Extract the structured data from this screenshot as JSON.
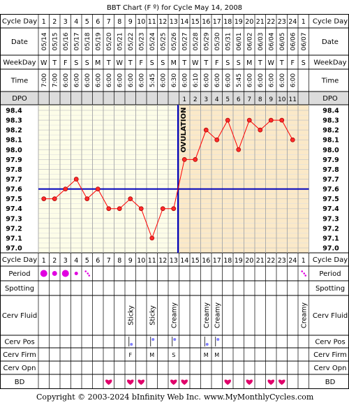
{
  "title": "BBT Chart (F º) for Cycle May 14, 2008",
  "footer": {
    "copyright": "Copyright © 2003-2024 bInfinity Web Inc.",
    "site": "www.MyMonthlyCycles.com"
  },
  "row_labels": {
    "cycle_day": "Cycle Day",
    "date": "Date",
    "weekday": "WeekDay",
    "time": "Time",
    "dpo": "DPO",
    "period": "Period",
    "spotting": "Spotting",
    "cerv_fluid": "Cerv Fluid",
    "cerv_pos": "Cerv Pos",
    "cerv_firm": "Cerv Firm",
    "cerv_opn": "Cerv Opn",
    "bd": "BD"
  },
  "ovulation_label": "OVULATION",
  "colors": {
    "pre_ovulation_bg": "#fdfde8",
    "post_ovulation_bg": "#fbe9c8",
    "grid": "#c8c8c8",
    "temp_line": "#ff0000",
    "point_fill": "#ff2a2a",
    "coverline": "#0000bb",
    "ovulation_line": "#0000bb",
    "period_dot": "#e000e0",
    "cerv_pos": "#8080ff",
    "cerv_firm": "#d000d0",
    "heart": "#e0006a",
    "dpo_bg": "#dcdcdc"
  },
  "chart_data": {
    "type": "line",
    "title": "BBT Chart (F º) for Cycle May 14, 2008",
    "cycle_days": [
      "1",
      "2",
      "3",
      "4",
      "5",
      "6",
      "7",
      "8",
      "9",
      "10",
      "11",
      "12",
      "13",
      "14",
      "15",
      "16",
      "17",
      "18",
      "19",
      "20",
      "21",
      "22",
      "23",
      "24",
      "1"
    ],
    "dates": [
      "05/14",
      "05/15",
      "05/16",
      "05/17",
      "05/18",
      "05/19",
      "05/20",
      "05/21",
      "05/22",
      "05/23",
      "05/24",
      "05/25",
      "05/26",
      "05/27",
      "05/28",
      "05/29",
      "05/30",
      "05/31",
      "06/01",
      "06/02",
      "06/03",
      "06/04",
      "06/05",
      "06/06",
      "06/07"
    ],
    "weekdays": [
      "W",
      "T",
      "F",
      "S",
      "S",
      "M",
      "T",
      "W",
      "T",
      "F",
      "S",
      "S",
      "M",
      "T",
      "W",
      "T",
      "F",
      "S",
      "S",
      "M",
      "T",
      "W",
      "T",
      "F",
      "S"
    ],
    "times": [
      "7:00",
      "7:00",
      "6:00",
      "6:00",
      "6:00",
      "6:00",
      "6:00",
      "6:00",
      "6:00",
      "6:00",
      "5:45",
      "6:00",
      "6:30",
      "6:00",
      "6:10",
      "6:00",
      "6:00",
      "6:00",
      "5:45",
      "6:00",
      "6:00",
      "6:00",
      "6:00",
      "6:00",
      ""
    ],
    "dpo": [
      "",
      "",
      "",
      "",
      "",
      "",
      "",
      "",
      "",
      "",
      "",
      "",
      "",
      "1",
      "2",
      "3",
      "4",
      "5",
      "6",
      "7",
      "8",
      "9",
      "10",
      "11",
      ""
    ],
    "temperatures": [
      97.5,
      97.5,
      97.6,
      97.7,
      97.5,
      97.6,
      97.4,
      97.4,
      97.5,
      97.4,
      97.1,
      97.4,
      97.4,
      97.9,
      97.9,
      98.2,
      98.1,
      98.3,
      98.0,
      98.3,
      98.2,
      98.3,
      98.3,
      98.1,
      null
    ],
    "y_ticks": [
      "98.4",
      "98.3",
      "98.2",
      "98.1",
      "98.0",
      "97.9",
      "97.8",
      "97.7",
      "97.6",
      "97.5",
      "97.4",
      "97.3",
      "97.2",
      "97.1",
      "97.0"
    ],
    "ylim": [
      97.0,
      98.4
    ],
    "coverline": 97.6,
    "ovulation_after_day_index": 12,
    "period": [
      3,
      2,
      3,
      1,
      0.5,
      0,
      0,
      0,
      0,
      0,
      0,
      0,
      0,
      0,
      0,
      0,
      0,
      0,
      0,
      0,
      0,
      0,
      0,
      0,
      0.5
    ],
    "cerv_fluid": [
      "",
      "",
      "",
      "",
      "",
      "",
      "",
      "",
      "Sticky",
      "",
      "Sticky",
      "",
      "Creamy",
      "",
      "",
      "Creamy",
      "Creamy",
      "",
      "",
      "",
      "",
      "",
      "",
      "",
      "Creamy"
    ],
    "cerv_pos": [
      "",
      "",
      "",
      "",
      "",
      "",
      "",
      "",
      "low",
      "",
      "mid",
      "",
      "mid",
      "",
      "",
      "low",
      "mid",
      "",
      "",
      "",
      "",
      "",
      "",
      "",
      ""
    ],
    "cerv_firm": [
      "",
      "",
      "",
      "",
      "",
      "",
      "",
      "",
      "F",
      "",
      "M",
      "",
      "S",
      "",
      "",
      "M",
      "M",
      "",
      "",
      "",
      "",
      "",
      "",
      "",
      ""
    ],
    "bd": [
      false,
      false,
      false,
      false,
      false,
      false,
      true,
      false,
      true,
      true,
      false,
      false,
      true,
      true,
      false,
      false,
      false,
      true,
      false,
      true,
      false,
      true,
      true,
      false,
      false
    ]
  }
}
